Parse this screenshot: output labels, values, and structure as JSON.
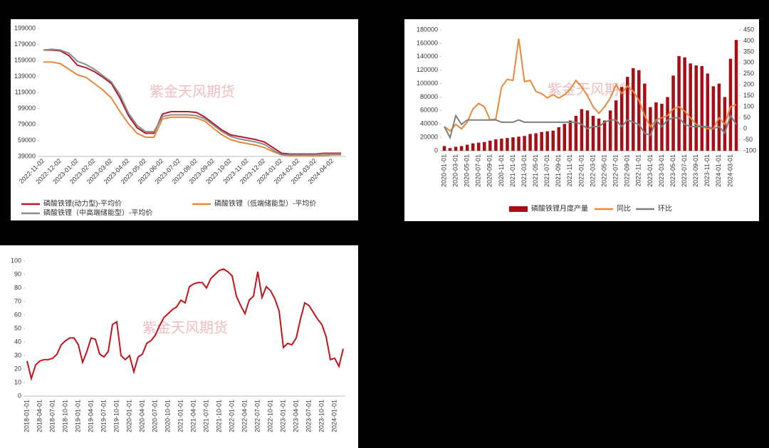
{
  "watermark": "紫金天风期货",
  "chart_data": [
    {
      "type": "line",
      "categories": [
        "2022-11-02",
        null,
        "2022-12-02",
        null,
        "2023-01-02",
        null,
        "2023-02-02",
        null,
        "2023-03-02",
        null,
        "2023-04-02",
        null,
        "2023-05-02",
        null,
        "2023-06-02",
        null,
        "2023-07-02",
        null,
        "2023-08-02",
        null,
        "2023-09-02",
        null,
        "2023-10-02",
        null,
        "2023-11-02",
        null,
        "2023-12-02",
        null,
        "2024-01-02",
        null,
        "2024-02-02",
        null,
        "2024-03-02",
        null,
        "2024-04-02",
        null
      ],
      "ylim": [
        39000,
        199000
      ],
      "yticks": [
        39000,
        59000,
        79000,
        99000,
        119000,
        139000,
        159000,
        179000,
        199000
      ],
      "series": [
        {
          "name": "磷酸铁锂(动力型)-平均价",
          "color": "#b01c2e",
          "values": [
            172000,
            172000,
            171000,
            165000,
            153000,
            150000,
            145000,
            138000,
            130000,
            112000,
            90000,
            75000,
            68000,
            68000,
            92000,
            95000,
            95000,
            95000,
            94000,
            88000,
            80000,
            72000,
            66000,
            64000,
            62000,
            60000,
            57000,
            50000,
            43000,
            42000,
            42000,
            42000,
            42000,
            43000,
            43000,
            43000
          ]
        },
        {
          "name": "磷酸铁锂（低端储能型）-平均价",
          "color": "#e8883a",
          "values": [
            157000,
            157000,
            155000,
            148000,
            141000,
            138000,
            130000,
            122000,
            112000,
            95000,
            80000,
            68000,
            63000,
            63000,
            86000,
            88000,
            88000,
            88000,
            87000,
            83000,
            74000,
            66000,
            60000,
            57000,
            55000,
            53000,
            50000,
            45000,
            41000,
            40000,
            40000,
            40000,
            40000,
            40000,
            41000,
            41000
          ]
        },
        {
          "name": "磷酸铁锂（中高端储能型）-平均价",
          "color": "#8c8c8c",
          "values": [
            172000,
            173000,
            172000,
            168000,
            158000,
            154000,
            148000,
            140000,
            132000,
            116000,
            93000,
            78000,
            70000,
            70000,
            89000,
            91000,
            91000,
            91000,
            90000,
            86000,
            78000,
            70000,
            64000,
            61000,
            59000,
            57000,
            54000,
            47000,
            41000,
            41000,
            41000,
            41000,
            41000,
            42000,
            42000,
            42000
          ]
        }
      ]
    },
    {
      "type": "bar",
      "categories": [
        "2020-01-01",
        null,
        "2020-03-01",
        null,
        "2020-05-01",
        null,
        "2020-07-01",
        null,
        "2020-09-01",
        null,
        "2020-11-01",
        null,
        "2021-01-01",
        null,
        "2021-03-01",
        null,
        "2021-05-01",
        null,
        "2021-07-01",
        null,
        "2021-09-01",
        null,
        "2021-11-01",
        null,
        "2022-01-01",
        null,
        "2022-03-01",
        null,
        "2022-05-01",
        null,
        "2022-07-01",
        null,
        "2022-09-01",
        null,
        "2022-11-01",
        null,
        "2023-01-01",
        null,
        "2023-03-01",
        null,
        "2023-05-01",
        null,
        "2023-07-01",
        null,
        "2023-09-01",
        null,
        "2023-11-01",
        null,
        "2024-01-01",
        null,
        "2024-03-01",
        null
      ],
      "ylim": [
        0,
        180000
      ],
      "yticks": [
        0,
        20000,
        40000,
        60000,
        80000,
        100000,
        120000,
        140000,
        160000,
        180000
      ],
      "y2lim": [
        -100,
        450
      ],
      "y2ticks": [
        -100,
        -50,
        0,
        50,
        100,
        150,
        200,
        250,
        300,
        350,
        400,
        450
      ],
      "series": [
        {
          "name": "磷酸铁锂月度产量",
          "type": "bar",
          "color": "#a50f15",
          "values": [
            7000,
            4000,
            6000,
            7000,
            9000,
            11000,
            12000,
            13000,
            15000,
            17000,
            18000,
            19000,
            20000,
            21000,
            22000,
            25000,
            26000,
            28000,
            29000,
            30000,
            35000,
            40000,
            45000,
            52000,
            62000,
            60000,
            52000,
            48000,
            45000,
            60000,
            75000,
            95000,
            110000,
            123000,
            120000,
            100000,
            65000,
            72000,
            70000,
            80000,
            112000,
            141000,
            139000,
            130000,
            127000,
            126000,
            115000,
            96000,
            100000,
            80000,
            137000,
            165000
          ]
        },
        {
          "name": "同比",
          "type": "line",
          "axis": "y2",
          "color": "#e8883a",
          "values": [
            10,
            -10,
            20,
            0,
            30,
            90,
            115,
            100,
            40,
            45,
            190,
            225,
            220,
            410,
            215,
            220,
            170,
            160,
            140,
            155,
            140,
            155,
            180,
            220,
            190,
            150,
            100,
            70,
            100,
            140,
            200,
            160,
            195,
            170,
            130,
            60,
            10,
            40,
            50,
            60,
            90,
            100,
            80,
            50,
            20,
            10,
            0,
            0,
            50,
            20,
            100,
            110
          ]
        },
        {
          "name": "环比",
          "type": "line",
          "axis": "y2",
          "color": "#7f7f7f",
          "values": [
            10,
            -40,
            60,
            20,
            40,
            40,
            40,
            40,
            40,
            40,
            30,
            30,
            30,
            40,
            30,
            30,
            30,
            30,
            30,
            30,
            30,
            30,
            30,
            30,
            20,
            0,
            10,
            10,
            30,
            40,
            40,
            10,
            40,
            30,
            20,
            -20,
            -30,
            40,
            10,
            40,
            50,
            50,
            20,
            10,
            10,
            10,
            10,
            0,
            10,
            -20,
            60,
            20
          ]
        }
      ]
    },
    {
      "type": "line",
      "categories": [
        "2018-01-01",
        null,
        null,
        "2018-04-01",
        null,
        null,
        "2018-07-01",
        null,
        null,
        "2018-10-01",
        null,
        null,
        "2019-01-01",
        null,
        null,
        "2019-04-01",
        null,
        null,
        "2019-07-01",
        null,
        null,
        "2019-10-01",
        null,
        null,
        "2020-01-01",
        null,
        null,
        "2020-04-01",
        null,
        null,
        "2020-07-01",
        null,
        null,
        "2020-10-01",
        null,
        null,
        "2021-01-01",
        null,
        null,
        "2021-04-01",
        null,
        null,
        "2021-07-01",
        null,
        null,
        "2021-10-01",
        null,
        null,
        "2022-01-01",
        null,
        null,
        "2022-04-01",
        null,
        null,
        "2022-07-01",
        null,
        null,
        "2022-10-01",
        null,
        null,
        "2023-01-01",
        null,
        null,
        "2023-04-01",
        null,
        null,
        "2023-07-01",
        null,
        null,
        "2023-10-01",
        null,
        null,
        "2024-01-01",
        null,
        null
      ],
      "ylim": [
        0,
        100
      ],
      "yticks": [
        0,
        10,
        20,
        30,
        40,
        50,
        60,
        70,
        80,
        90,
        100
      ],
      "series": [
        {
          "color": "#c0141c",
          "values": [
            26,
            13,
            23,
            26,
            27,
            27,
            28,
            31,
            38,
            41,
            43,
            43,
            38,
            25,
            33,
            43,
            42,
            31,
            29,
            33,
            53,
            55,
            30,
            27,
            30,
            18,
            29,
            31,
            39,
            41,
            45,
            52,
            58,
            61,
            64,
            66,
            71,
            69,
            81,
            83,
            84,
            84,
            80,
            87,
            90,
            93,
            94,
            92,
            89,
            74,
            67,
            61,
            71,
            74,
            92,
            73,
            81,
            78,
            72,
            63,
            36,
            39,
            38,
            43,
            57,
            69,
            67,
            62,
            57,
            53,
            44,
            27,
            28,
            22,
            35
          ]
        }
      ]
    }
  ]
}
